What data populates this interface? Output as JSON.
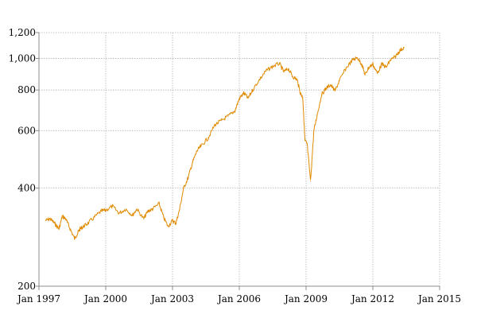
{
  "chart_data": {
    "type": "line",
    "title": "",
    "xlabel": "",
    "ylabel": "",
    "y_scale": "log",
    "grid": true,
    "legend": "none",
    "xlim": [
      1997.0,
      2015.0
    ],
    "ylim": [
      200,
      1200
    ],
    "x_ticks": [
      {
        "value": 1997,
        "label": "Jan 1997"
      },
      {
        "value": 2000,
        "label": "Jan 2000"
      },
      {
        "value": 2003,
        "label": "Jan 2003"
      },
      {
        "value": 2006,
        "label": "Jan 2006"
      },
      {
        "value": 2009,
        "label": "Jan 2009"
      },
      {
        "value": 2012,
        "label": "Jan 2012"
      },
      {
        "value": 2015,
        "label": "Jan 2015"
      }
    ],
    "y_ticks": [
      {
        "value": 200,
        "label": "200"
      },
      {
        "value": 400,
        "label": "400"
      },
      {
        "value": 600,
        "label": "600"
      },
      {
        "value": 800,
        "label": "800"
      },
      {
        "value": 1000,
        "label": "1,000"
      },
      {
        "value": 1200,
        "label": "1,200"
      }
    ],
    "series": [
      {
        "color": "#e08a00",
        "x": [
          1997.3,
          1997.5,
          1997.7,
          1997.9,
          1998.05,
          1998.2,
          1998.4,
          1998.6,
          1998.75,
          1998.85,
          1999.0,
          1999.2,
          1999.5,
          1999.8,
          2000.0,
          2000.3,
          2000.6,
          2000.9,
          2001.2,
          2001.4,
          2001.7,
          2001.9,
          2002.1,
          2002.4,
          2002.6,
          2002.8,
          2003.0,
          2003.15,
          2003.3,
          2003.5,
          2003.7,
          2003.9,
          2004.1,
          2004.3,
          2004.6,
          2004.9,
          2005.2,
          2005.5,
          2005.8,
          2006.0,
          2006.2,
          2006.4,
          2006.6,
          2006.9,
          2007.2,
          2007.5,
          2007.8,
          2008.0,
          2008.2,
          2008.4,
          2008.6,
          2008.75,
          2008.85,
          2008.95,
          2009.05,
          2009.2,
          2009.35,
          2009.5,
          2009.7,
          2009.9,
          2010.1,
          2010.3,
          2010.5,
          2010.8,
          2011.1,
          2011.3,
          2011.5,
          2011.65,
          2011.8,
          2012.0,
          2012.2,
          2012.4,
          2012.6,
          2012.8,
          2013.0,
          2013.2,
          2013.4
        ],
        "y": [
          318,
          322,
          312,
          300,
          328,
          322,
          300,
          280,
          292,
          300,
          305,
          312,
          326,
          340,
          342,
          352,
          335,
          345,
          330,
          345,
          322,
          340,
          345,
          358,
          325,
          305,
          318,
          312,
          340,
          400,
          430,
          480,
          520,
          540,
          570,
          625,
          645,
          665,
          690,
          752,
          782,
          755,
          800,
          860,
          915,
          945,
          965,
          910,
          930,
          880,
          860,
          780,
          760,
          560,
          545,
          420,
          600,
          672,
          775,
          810,
          830,
          795,
          855,
          935,
          990,
          1005,
          960,
          890,
          935,
          960,
          900,
          960,
          940,
          990,
          1010,
          1055,
          1080
        ]
      }
    ]
  }
}
